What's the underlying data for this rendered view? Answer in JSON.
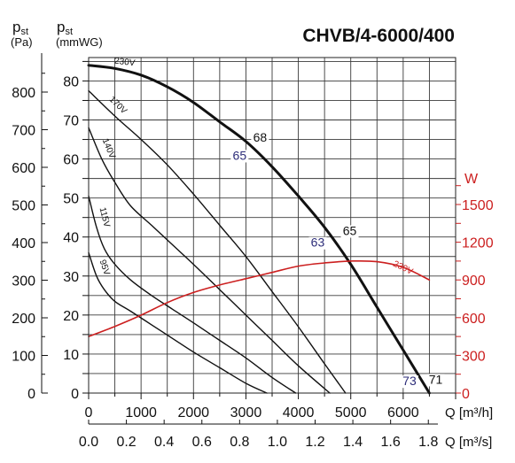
{
  "chart_data": {
    "type": "line",
    "title": "CHVB/4-6000/400",
    "left_axis_pa": {
      "label_main": "p",
      "label_sub": "st",
      "unit": "(Pa)",
      "ticks": [
        0,
        100,
        200,
        300,
        400,
        500,
        600,
        700,
        800
      ]
    },
    "left_axis_mmwg": {
      "label_main": "p",
      "label_sub": "st",
      "unit": "(mmWG)",
      "ticks": [
        0,
        10,
        20,
        30,
        40,
        50,
        60,
        70,
        80
      ],
      "ylim": [
        0,
        86
      ]
    },
    "right_axis_w": {
      "label": "W",
      "ticks": [
        0,
        300,
        600,
        900,
        1200,
        1500
      ],
      "color": "#cc1f1f"
    },
    "x_axis_m3h": {
      "label": "Q [m³/h]",
      "ticks": [
        0,
        1000,
        2000,
        3000,
        4000,
        5000,
        6000
      ],
      "xlim": [
        0,
        7000
      ]
    },
    "x_axis_m3s": {
      "label": "Q [m³/s]",
      "ticks": [
        "0.0",
        "0.2",
        "0.4",
        "0.6",
        "0.8",
        "1.0",
        "1.2",
        "1.4",
        "1.6",
        "1.8"
      ]
    },
    "grid": true,
    "series": [
      {
        "name": "230V",
        "kind": "pressure",
        "bold": true,
        "x": [
          0,
          500,
          1000,
          1500,
          2000,
          2500,
          3000,
          3500,
          4000,
          4500,
          5000,
          5500,
          6000,
          6500
        ],
        "y": [
          84,
          83.2,
          81.5,
          78.5,
          74.5,
          69.5,
          64.5,
          58,
          50.5,
          42.5,
          33,
          22,
          11,
          0
        ]
      },
      {
        "name": "170V",
        "kind": "pressure",
        "bold": false,
        "x": [
          0,
          500,
          1000,
          1500,
          2000,
          2500,
          3000,
          3500,
          4000,
          4500,
          4900
        ],
        "y": [
          77.5,
          71,
          65,
          58.5,
          51,
          43,
          35,
          26,
          17,
          7.5,
          0
        ]
      },
      {
        "name": "140V",
        "kind": "pressure",
        "bold": false,
        "x": [
          0,
          250,
          500,
          800,
          1200,
          1600,
          2000,
          2500,
          3000,
          3500,
          4000,
          4600
        ],
        "y": [
          68,
          60,
          54,
          48,
          43,
          38,
          33,
          26.5,
          20,
          13.5,
          7,
          0
        ]
      },
      {
        "name": "115V",
        "kind": "pressure",
        "bold": false,
        "x": [
          0,
          150,
          300,
          500,
          800,
          1200,
          1600,
          2000,
          2500,
          3000,
          3500,
          3950
        ],
        "y": [
          50.5,
          42.5,
          37,
          33,
          29,
          25,
          21.5,
          18,
          13.5,
          9,
          4,
          0
        ]
      },
      {
        "name": "95V",
        "kind": "pressure",
        "bold": false,
        "x": [
          0,
          150,
          300,
          500,
          800,
          1200,
          1600,
          2000,
          2500,
          3000,
          3400
        ],
        "y": [
          36,
          30,
          26.5,
          23.5,
          21,
          17.5,
          14,
          10.5,
          6.5,
          2.5,
          0
        ]
      },
      {
        "name": "230V",
        "kind": "power",
        "color": "#cc1f1f",
        "x": [
          0,
          500,
          1000,
          1500,
          2000,
          2500,
          3000,
          3500,
          4000,
          4500,
          5000,
          5500,
          6000,
          6500
        ],
        "y": [
          450,
          530,
          620,
          720,
          800,
          860,
          910,
          960,
          1010,
          1035,
          1050,
          1045,
          1000,
          900
        ]
      }
    ],
    "annotations": [
      {
        "text": "68",
        "x": 3270,
        "y": 64.5,
        "color": "#111111"
      },
      {
        "text": "65",
        "x": 2880,
        "y": 59.8,
        "color": "#2e2e7a"
      },
      {
        "text": "63",
        "x": 4370,
        "y": 37.5,
        "color": "#2e2e7a"
      },
      {
        "text": "65",
        "x": 4980,
        "y": 40.5,
        "color": "#111111"
      },
      {
        "text": "73",
        "x": 6120,
        "y": 2,
        "color": "#2e2e7a"
      },
      {
        "text": "71",
        "x": 6620,
        "y": 2.4,
        "color": "#111111"
      }
    ]
  }
}
